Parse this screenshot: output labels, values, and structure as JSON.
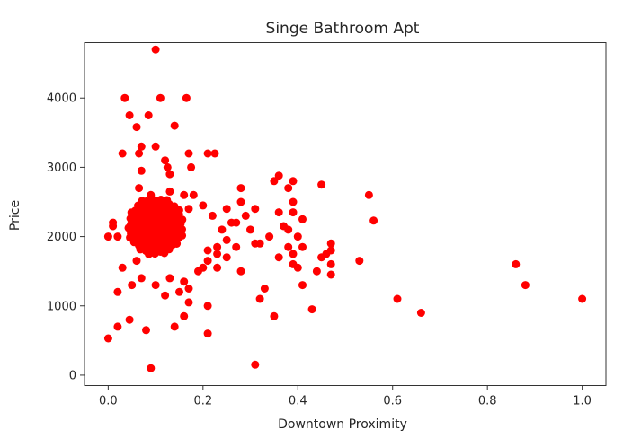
{
  "chart_data": {
    "type": "scatter",
    "title": "Singe Bathroom Apt",
    "xlabel": "Downtown Proximity",
    "ylabel": "Price",
    "xlim": [
      -0.05,
      1.05
    ],
    "ylim": [
      -150,
      4800
    ],
    "xticks": [
      0.0,
      0.2,
      0.4,
      0.6,
      0.8,
      1.0
    ],
    "xtick_labels": [
      "0.0",
      "0.2",
      "0.4",
      "0.6",
      "0.8",
      "1.0"
    ],
    "yticks": [
      0,
      1000,
      2000,
      3000,
      4000
    ],
    "ytick_labels": [
      "0",
      "1000",
      "2000",
      "3000",
      "4000"
    ],
    "grid": false,
    "legend": false,
    "marker_color": "#ff0000",
    "series": [
      {
        "points": [
          [
            0.1,
            4700
          ],
          [
            0.035,
            4000
          ],
          [
            0.11,
            4000
          ],
          [
            0.165,
            4000
          ],
          [
            0.045,
            3750
          ],
          [
            0.085,
            3750
          ],
          [
            0.14,
            3600
          ],
          [
            0.06,
            3580
          ],
          [
            0.07,
            3300
          ],
          [
            0.1,
            3300
          ],
          [
            0.03,
            3200
          ],
          [
            0.065,
            3200
          ],
          [
            0.17,
            3200
          ],
          [
            0.21,
            3200
          ],
          [
            0.225,
            3200
          ],
          [
            0.12,
            3100
          ],
          [
            0.125,
            3000
          ],
          [
            0.175,
            3000
          ],
          [
            0.07,
            2950
          ],
          [
            0.13,
            2900
          ],
          [
            0.36,
            2880
          ],
          [
            0.35,
            2800
          ],
          [
            0.39,
            2800
          ],
          [
            0.45,
            2750
          ],
          [
            0.065,
            2700
          ],
          [
            0.28,
            2700
          ],
          [
            0.38,
            2700
          ],
          [
            0.13,
            2650
          ],
          [
            0.55,
            2600
          ],
          [
            0.09,
            2600
          ],
          [
            0.16,
            2600
          ],
          [
            0.18,
            2600
          ],
          [
            0.28,
            2500
          ],
          [
            0.39,
            2500
          ],
          [
            0.2,
            2450
          ],
          [
            0.12,
            2400
          ],
          [
            0.17,
            2400
          ],
          [
            0.25,
            2400
          ],
          [
            0.31,
            2400
          ],
          [
            0.36,
            2350
          ],
          [
            0.39,
            2350
          ],
          [
            0.22,
            2300
          ],
          [
            0.29,
            2300
          ],
          [
            0.41,
            2250
          ],
          [
            0.56,
            2230
          ],
          [
            0.26,
            2200
          ],
          [
            0.27,
            2200
          ],
          [
            0.37,
            2150
          ],
          [
            0.38,
            2100
          ],
          [
            0.24,
            2100
          ],
          [
            0.3,
            2100
          ],
          [
            0.34,
            2000
          ],
          [
            0.4,
            2000
          ],
          [
            0.25,
            1950
          ],
          [
            0.31,
            1900
          ],
          [
            0.32,
            1900
          ],
          [
            0.47,
            1900
          ],
          [
            0.23,
            1850
          ],
          [
            0.27,
            1850
          ],
          [
            0.38,
            1850
          ],
          [
            0.41,
            1850
          ],
          [
            0.47,
            1800
          ],
          [
            0.21,
            1800
          ],
          [
            0.23,
            1750
          ],
          [
            0.39,
            1750
          ],
          [
            0.46,
            1750
          ],
          [
            0.25,
            1700
          ],
          [
            0.36,
            1700
          ],
          [
            0.45,
            1700
          ],
          [
            0.21,
            1650
          ],
          [
            0.53,
            1650
          ],
          [
            0.39,
            1600
          ],
          [
            0.47,
            1600
          ],
          [
            0.86,
            1600
          ],
          [
            0.2,
            1550
          ],
          [
            0.23,
            1550
          ],
          [
            0.4,
            1550
          ],
          [
            0.44,
            1500
          ],
          [
            0.28,
            1500
          ],
          [
            0.19,
            1500
          ],
          [
            0.47,
            1450
          ],
          [
            0.41,
            1300
          ],
          [
            0.88,
            1300
          ],
          [
            0.33,
            1250
          ],
          [
            0.17,
            1250
          ],
          [
            0.15,
            1200
          ],
          [
            0.32,
            1100
          ],
          [
            0.61,
            1100
          ],
          [
            1.0,
            1100
          ],
          [
            0.17,
            1050
          ],
          [
            0.21,
            1000
          ],
          [
            0.43,
            950
          ],
          [
            0.66,
            900
          ],
          [
            0.35,
            850
          ],
          [
            0.16,
            850
          ],
          [
            0.045,
            800
          ],
          [
            0.14,
            700
          ],
          [
            0.02,
            700
          ],
          [
            0.08,
            650
          ],
          [
            0.21,
            600
          ],
          [
            0.0,
            530
          ],
          [
            0.09,
            100
          ],
          [
            0.31,
            150
          ],
          [
            0.13,
            1400
          ],
          [
            0.16,
            1350
          ],
          [
            0.1,
            1300
          ],
          [
            0.07,
            1400
          ],
          [
            0.05,
            1300
          ],
          [
            0.12,
            1150
          ],
          [
            0.06,
            1650
          ],
          [
            0.03,
            1550
          ],
          [
            0.02,
            1200
          ],
          [
            0.01,
            2200
          ],
          [
            0.02,
            2000
          ],
          [
            0.0,
            2000
          ],
          [
            0.01,
            2150
          ]
        ]
      }
    ]
  }
}
